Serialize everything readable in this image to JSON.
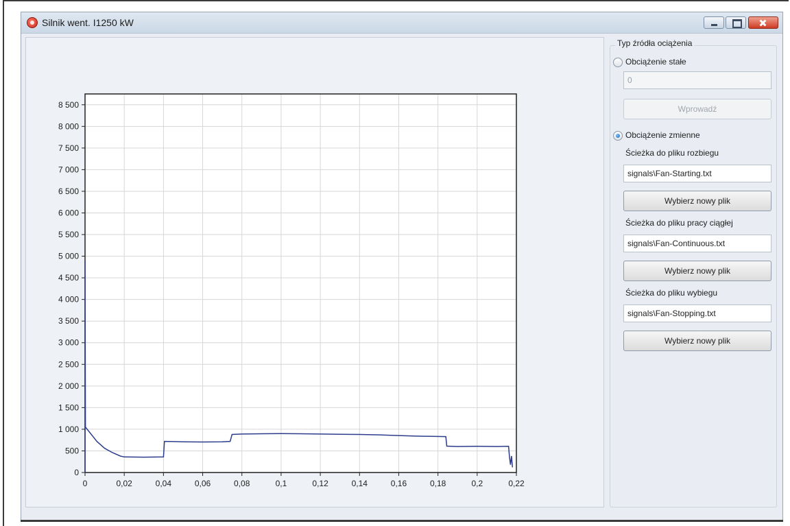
{
  "window": {
    "title": "Silnik went. I1250 kW"
  },
  "side_panel": {
    "group_label": "Typ źródła ociążenia",
    "constant_load_label": "Obciążenie stałe",
    "constant_load_selected": false,
    "constant_value": "0",
    "apply_label": "Wprowadź",
    "variable_load_label": "Obciążenie zmienne",
    "variable_load_selected": true,
    "startup_path_label": "Ścieżka do pliku rozbiegu",
    "startup_path_value": "signals\\Fan-Starting.txt",
    "startup_choose_label": "Wybierz nowy plik",
    "continuous_path_label": "Ścieżka do pliku pracy ciągłej",
    "continuous_path_value": "signals\\Fan-Continuous.txt",
    "continuous_choose_label": "Wybierz nowy plik",
    "coastdown_path_label": "Ścieżka do pliku wybiegu",
    "coastdown_path_value": "signals\\Fan-Stopping.txt",
    "coastdown_choose_label": "Wybierz nowy plik"
  },
  "chart_data": {
    "type": "line",
    "title": "",
    "xlabel": "",
    "ylabel": "",
    "xlim": [
      0,
      0.22
    ],
    "ylim": [
      0,
      8750
    ],
    "x_ticks": [
      0,
      0.02,
      0.04,
      0.06,
      0.08,
      0.1,
      0.12,
      0.14,
      0.16,
      0.18,
      0.2,
      0.22
    ],
    "x_tick_labels": [
      "0",
      "0,02",
      "0,04",
      "0,06",
      "0,08",
      "0,1",
      "0,12",
      "0,14",
      "0,16",
      "0,18",
      "0,2",
      "0,22"
    ],
    "y_ticks": [
      0,
      500,
      1000,
      1500,
      2000,
      2500,
      3000,
      3500,
      4000,
      4500,
      5000,
      5500,
      6000,
      6500,
      7000,
      7500,
      8000,
      8500
    ],
    "y_tick_labels": [
      "0",
      "500",
      "1 000",
      "1 500",
      "2 000",
      "2 500",
      "3 000",
      "3 500",
      "4 000",
      "4 500",
      "5 000",
      "5 500",
      "6 000",
      "6 500",
      "7 000",
      "7 500",
      "8 000",
      "8 500"
    ],
    "grid": true,
    "line_color": "#2d3c8c",
    "series": [
      {
        "points": [
          [
            0,
            0
          ],
          [
            0,
            4900
          ],
          [
            0.0002,
            1050
          ],
          [
            0.002,
            950
          ],
          [
            0.006,
            720
          ],
          [
            0.01,
            560
          ],
          [
            0.014,
            460
          ],
          [
            0.018,
            380
          ],
          [
            0.02,
            360
          ],
          [
            0.03,
            355
          ],
          [
            0.04,
            360
          ],
          [
            0.0405,
            720
          ],
          [
            0.05,
            710
          ],
          [
            0.06,
            705
          ],
          [
            0.07,
            710
          ],
          [
            0.074,
            720
          ],
          [
            0.075,
            880
          ],
          [
            0.08,
            890
          ],
          [
            0.09,
            895
          ],
          [
            0.1,
            900
          ],
          [
            0.11,
            895
          ],
          [
            0.12,
            890
          ],
          [
            0.13,
            885
          ],
          [
            0.14,
            880
          ],
          [
            0.15,
            870
          ],
          [
            0.16,
            855
          ],
          [
            0.17,
            840
          ],
          [
            0.184,
            830
          ],
          [
            0.1845,
            610
          ],
          [
            0.19,
            600
          ],
          [
            0.2,
            605
          ],
          [
            0.21,
            600
          ],
          [
            0.216,
            605
          ],
          [
            0.2165,
            350
          ],
          [
            0.217,
            180
          ],
          [
            0.2175,
            380
          ],
          [
            0.218,
            120
          ]
        ]
      }
    ]
  }
}
